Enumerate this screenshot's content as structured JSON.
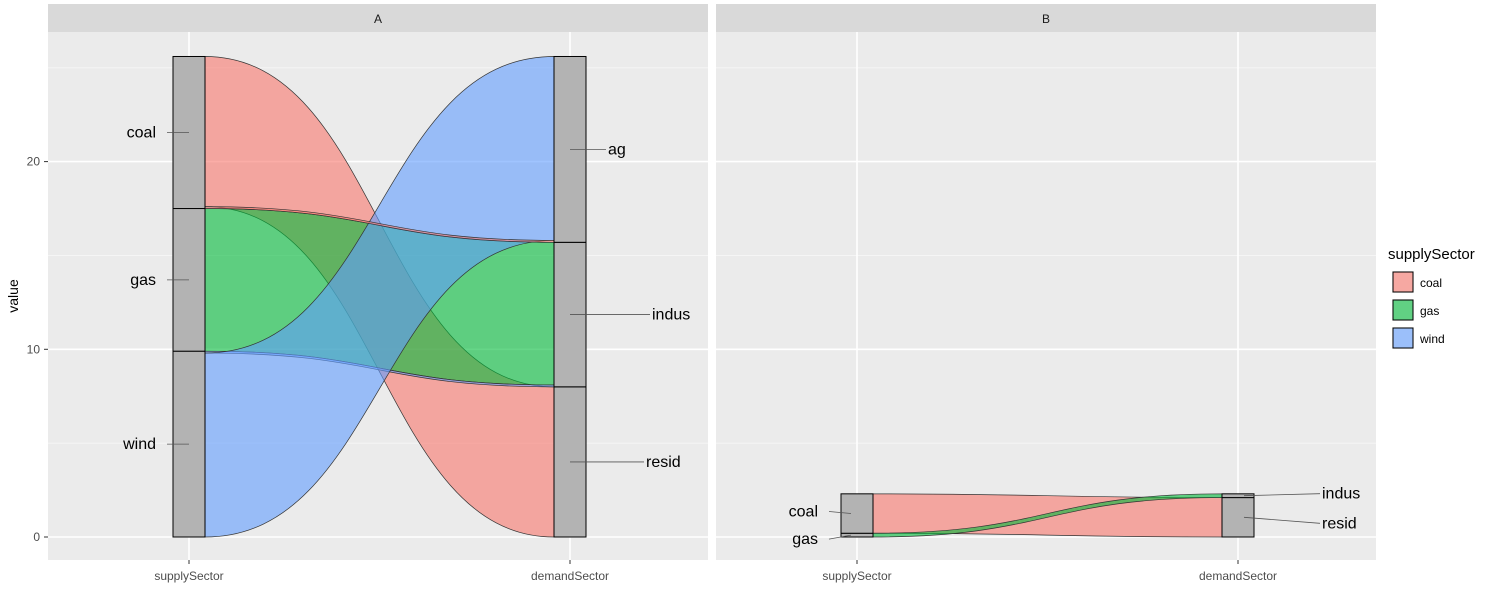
{
  "chart_data": {
    "type": "alluvial",
    "ylabel": "value",
    "ylim": [
      0,
      26
    ],
    "y_ticks": [
      0,
      10,
      20
    ],
    "axes": [
      "supplySector",
      "demandSector"
    ],
    "legend": {
      "title": "supplySector",
      "position": "right",
      "entries": [
        {
          "name": "coal",
          "color": "#F8766D"
        },
        {
          "name": "gas",
          "color": "#00BA38"
        },
        {
          "name": "wind",
          "color": "#619CFF"
        }
      ]
    },
    "panels": [
      {
        "title": "A",
        "supply_strata": [
          {
            "name": "wind",
            "from": 0,
            "to": 9.9
          },
          {
            "name": "gas",
            "from": 9.9,
            "to": 17.5
          },
          {
            "name": "coal",
            "from": 17.5,
            "to": 25.6
          }
        ],
        "demand_strata": [
          {
            "name": "resid",
            "from": 0,
            "to": 8
          },
          {
            "name": "indus",
            "from": 8,
            "to": 15.7
          },
          {
            "name": "ag",
            "from": 15.7,
            "to": 25.6
          }
        ],
        "flows": [
          {
            "supply": "coal",
            "demand": "resid",
            "value": 8.0,
            "fill": "coal"
          },
          {
            "supply": "gas",
            "demand": "indus",
            "value": 7.6,
            "fill": "gas"
          },
          {
            "supply": "wind",
            "demand": "indus",
            "value": 0.1,
            "fill": "wind"
          },
          {
            "supply": "wind",
            "demand": "ag",
            "value": 9.8,
            "fill": "wind"
          },
          {
            "supply": "coal",
            "demand": "ag",
            "value": 0.1,
            "fill": "coal"
          }
        ]
      },
      {
        "title": "B",
        "supply_strata": [
          {
            "name": "gas",
            "from": 0,
            "to": 0.2
          },
          {
            "name": "coal",
            "from": 0.2,
            "to": 2.3
          }
        ],
        "demand_strata": [
          {
            "name": "resid",
            "from": 0,
            "to": 2.1
          },
          {
            "name": "indus",
            "from": 2.1,
            "to": 2.3
          }
        ],
        "flows": [
          {
            "supply": "coal",
            "demand": "resid",
            "value": 2.1,
            "fill": "coal"
          },
          {
            "supply": "gas",
            "demand": "indus",
            "value": 0.2,
            "fill": "gas"
          }
        ]
      }
    ]
  }
}
